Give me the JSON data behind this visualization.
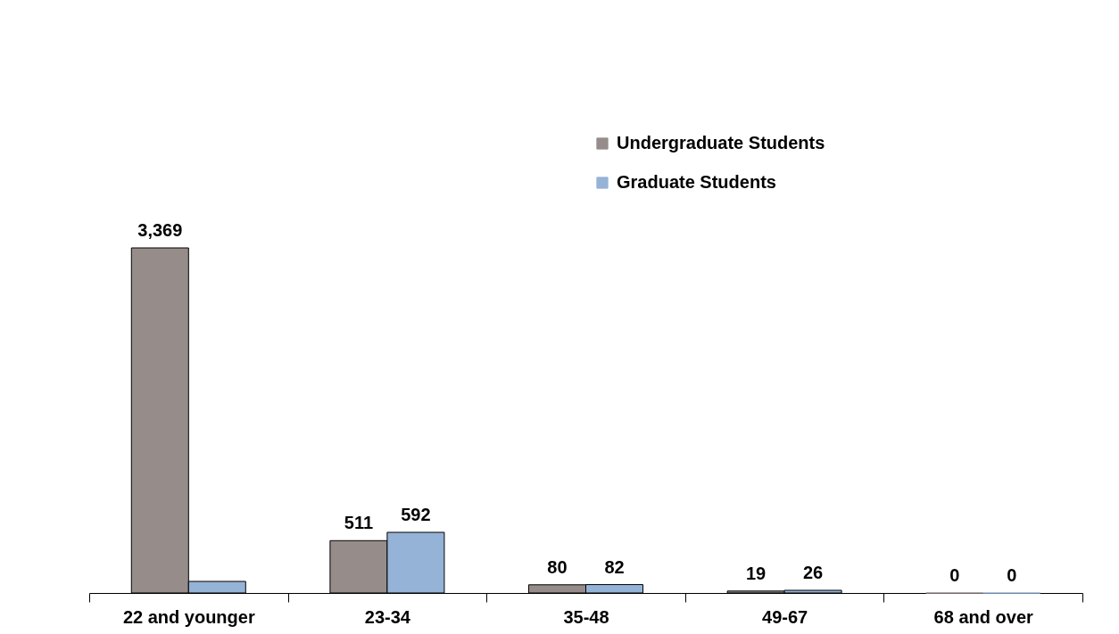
{
  "chart_data": {
    "type": "bar",
    "categories": [
      "22 and younger",
      "23-34",
      "35-48",
      "49-67",
      "68 and over"
    ],
    "series": [
      {
        "name": "Undergraduate Students",
        "color": "#968d8b",
        "values": [
          3369,
          511,
          80,
          19,
          0
        ],
        "value_labels": [
          "3,369",
          "511",
          "80",
          "19",
          "0"
        ]
      },
      {
        "name": "Graduate Students",
        "color": "#95b3d7",
        "values": [
          113,
          592,
          82,
          26,
          0
        ],
        "value_labels": [
          null,
          "592",
          "82",
          "26",
          "0"
        ]
      }
    ],
    "legend": "top right"
  }
}
